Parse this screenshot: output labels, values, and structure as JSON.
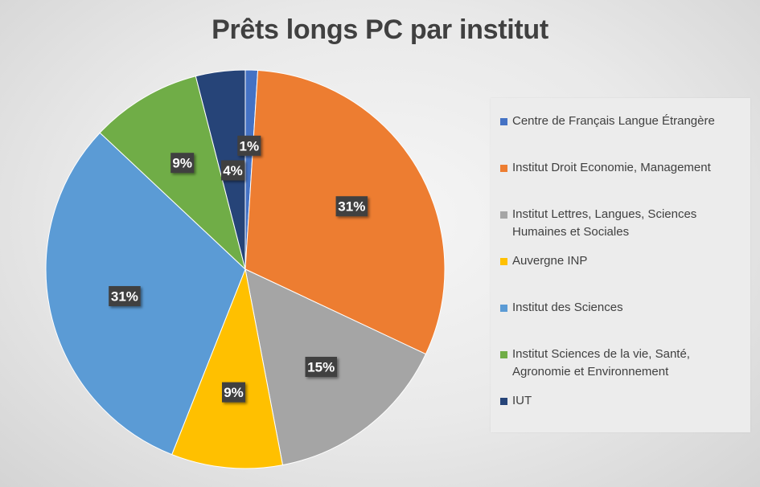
{
  "chart_data": {
    "type": "pie",
    "title": "Prêts longs PC par institut",
    "legend_position": "right",
    "slices": [
      {
        "name": "Centre de Français Langue Étrangère",
        "value": 1,
        "label": "1%",
        "color": "#4472C4"
      },
      {
        "name": "Institut Droit Economie, Management",
        "value": 31,
        "label": "31%",
        "color": "#ED7D31"
      },
      {
        "name": "Institut Lettres, Langues, Sciences Humaines et Sociales",
        "value": 15,
        "label": "15%",
        "color": "#A5A5A5"
      },
      {
        "name": "Auvergne INP",
        "value": 9,
        "label": "9%",
        "color": "#FFC000"
      },
      {
        "name": "Institut des Sciences",
        "value": 31,
        "label": "31%",
        "color": "#5B9BD5"
      },
      {
        "name": "Institut Sciences de la vie, Santé, Agronomie et Environnement",
        "value": 9,
        "label": "9%",
        "color": "#70AD47"
      },
      {
        "name": "IUT",
        "value": 4,
        "label": "4%",
        "color": "#264478"
      }
    ]
  }
}
